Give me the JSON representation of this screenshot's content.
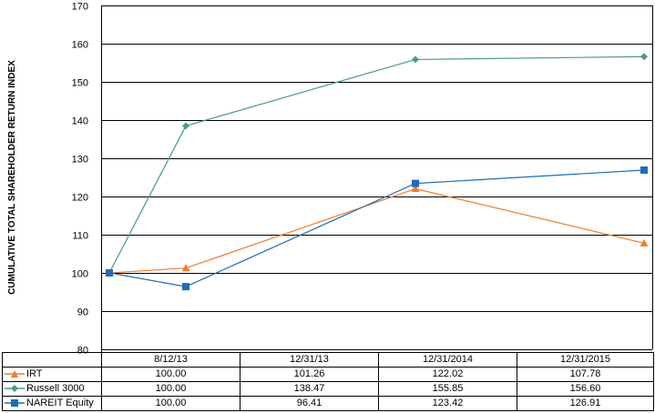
{
  "chart_data": {
    "type": "line",
    "ylabel": "CUMULATIVE TOTAL SHAREHOLDER RETURN INDEX",
    "ylim": [
      80,
      170
    ],
    "yticks": [
      80,
      90,
      100,
      110,
      120,
      130,
      140,
      150,
      160,
      170
    ],
    "grid": true,
    "legend_placement": "table below chart",
    "categories": [
      "8/12/13",
      "12/31/13",
      "12/31/2014",
      "12/31/2015"
    ],
    "series": [
      {
        "name": "IRT",
        "color": "#ed7d31",
        "marker": "triangle",
        "values": [
          100.0,
          101.26,
          122.02,
          107.78
        ],
        "labels": [
          "100.00",
          "101.26",
          "122.02",
          "107.78"
        ]
      },
      {
        "name": "Russell 3000",
        "color": "#4a9d78",
        "marker": "diamond",
        "values": [
          100.0,
          138.47,
          155.85,
          156.6
        ],
        "labels": [
          "100.00",
          "138.47",
          "155.85",
          "156.60"
        ]
      },
      {
        "name": "NAREIT Equity",
        "color": "#1f6db5",
        "marker": "square",
        "values": [
          100.0,
          96.41,
          123.42,
          126.91
        ],
        "labels": [
          "100.00",
          "96.41",
          "123.42",
          "126.91"
        ]
      }
    ]
  }
}
